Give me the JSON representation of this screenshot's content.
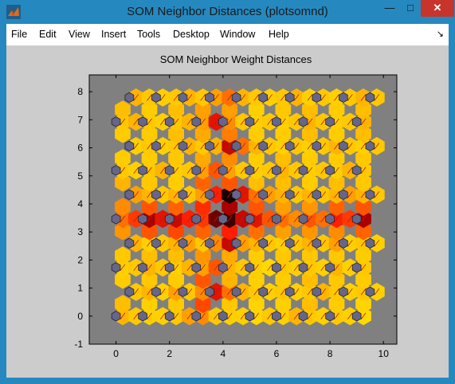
{
  "window": {
    "title": "SOM Neighbor Distances (plotsomnd)",
    "minimize_glyph": "—",
    "maximize_glyph": "□",
    "close_glyph": "✕"
  },
  "menu": {
    "items": [
      "File",
      "Edit",
      "View",
      "Insert",
      "Tools",
      "Desktop",
      "Window",
      "Help"
    ],
    "dock_glyph": "↘"
  },
  "colors": {
    "axes_bg": "#808080",
    "neuron": "#66668c",
    "neighbor_low": "#ffff00",
    "neighbor_mid": "#ff9000",
    "neighbor_high": "#ff1e00",
    "neighbor_max": "#000000"
  },
  "chart_data": {
    "type": "heatmap",
    "title": "SOM Neighbor Weight Distances",
    "xlabel": "",
    "ylabel": "",
    "xlim": [
      -1,
      10.5
    ],
    "ylim": [
      -1,
      8.6
    ],
    "xticks": [
      0,
      2,
      4,
      6,
      8,
      10
    ],
    "yticks": [
      -1,
      0,
      1,
      2,
      3,
      4,
      5,
      6,
      7,
      8
    ],
    "grid": "hexagonal",
    "grid_cols": 10,
    "grid_rows": 10,
    "neurons_per_row": 10,
    "row_offset": 0.5,
    "row_spacing": 0.866,
    "distance_scale": [
      0,
      1
    ],
    "cell_values": [
      [
        0.4,
        0.35,
        0.3,
        0.3,
        0.35,
        0.45,
        0.5,
        0.35,
        0.3,
        0.3,
        0.25,
        0.35,
        0.3,
        0.4,
        0.35,
        0.3,
        0.35,
        0.3,
        0.25
      ],
      [
        0.35,
        0.4,
        0.3,
        0.45,
        0.35,
        0.5,
        0.75,
        0.55,
        0.4,
        0.35,
        0.3,
        0.35,
        0.3,
        0.35,
        0.4,
        0.35,
        0.3,
        0.35,
        0.3
      ],
      [
        0.3,
        0.35,
        0.4,
        0.35,
        0.3,
        0.4,
        0.45,
        0.6,
        0.4,
        0.35,
        0.3,
        0.25,
        0.35,
        0.3,
        0.35,
        0.3,
        0.4,
        0.3,
        0.35
      ],
      [
        0.4,
        0.3,
        0.35,
        0.4,
        0.45,
        0.35,
        0.5,
        0.8,
        0.45,
        0.4,
        0.35,
        0.3,
        0.35,
        0.4,
        0.35,
        0.45,
        0.3,
        0.35,
        0.3
      ],
      [
        0.55,
        0.65,
        0.85,
        0.75,
        0.8,
        0.7,
        0.65,
        0.9,
        0.95,
        0.8,
        0.75,
        0.6,
        0.55,
        0.5,
        0.6,
        0.55,
        0.7,
        0.65,
        0.85
      ],
      [
        0.45,
        0.4,
        0.35,
        0.4,
        0.35,
        0.45,
        0.7,
        0.98,
        0.75,
        0.55,
        0.45,
        0.4,
        0.35,
        0.4,
        0.35,
        0.4,
        0.45,
        0.4,
        0.35
      ],
      [
        0.35,
        0.3,
        0.35,
        0.4,
        0.3,
        0.35,
        0.45,
        0.6,
        0.45,
        0.35,
        0.3,
        0.35,
        0.4,
        0.35,
        0.3,
        0.35,
        0.3,
        0.4,
        0.35
      ],
      [
        0.3,
        0.35,
        0.3,
        0.35,
        0.4,
        0.35,
        0.4,
        0.8,
        0.55,
        0.4,
        0.35,
        0.3,
        0.35,
        0.3,
        0.35,
        0.4,
        0.35,
        0.3,
        0.35
      ],
      [
        0.35,
        0.4,
        0.35,
        0.3,
        0.35,
        0.4,
        0.45,
        0.75,
        0.5,
        0.35,
        0.3,
        0.35,
        0.3,
        0.35,
        0.4,
        0.35,
        0.3,
        0.35,
        0.4
      ],
      [
        0.4,
        0.35,
        0.3,
        0.35,
        0.4,
        0.35,
        0.45,
        0.55,
        0.4,
        0.35,
        0.3,
        0.35,
        0.4,
        0.3,
        0.35,
        0.3,
        0.35,
        0.4,
        0.35
      ]
    ]
  }
}
